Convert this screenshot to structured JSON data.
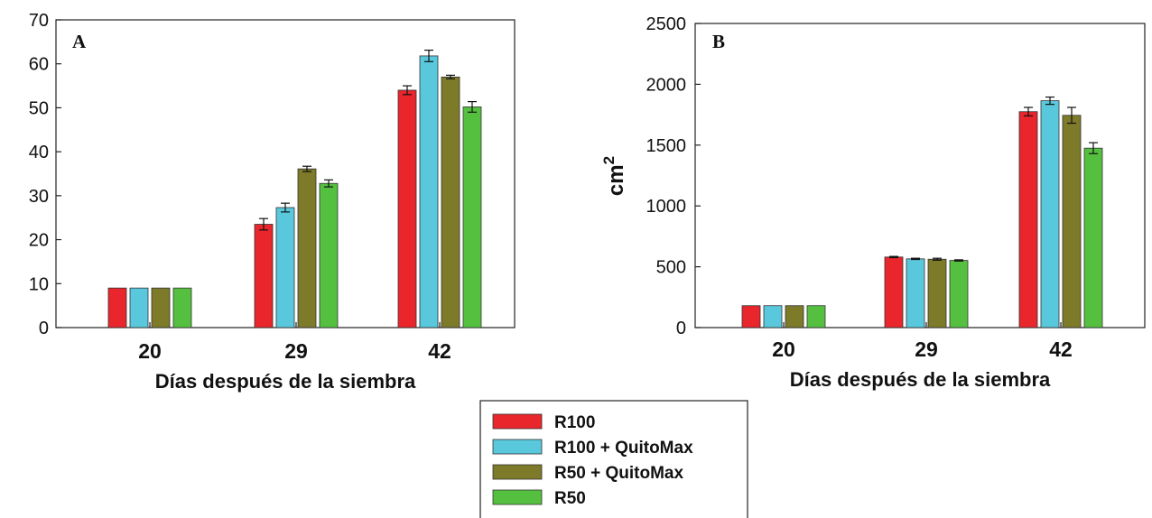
{
  "chart_data": [
    {
      "type": "bar",
      "panel_label": "A",
      "categories": [
        "20",
        "29",
        "42"
      ],
      "xlabel": "Días después de la siembra",
      "ylabel": "",
      "ylim": [
        0,
        70
      ],
      "yticks": [
        0,
        10,
        20,
        30,
        40,
        50,
        60,
        70
      ],
      "error_bars": true,
      "series": [
        {
          "name": "R100",
          "color": "#e8262b",
          "values": [
            9.0,
            23.5,
            54.0
          ],
          "errors": [
            0.0,
            1.3,
            1.0
          ]
        },
        {
          "name": "R100 + QuitoMax",
          "color": "#5ac8dc",
          "values": [
            9.0,
            27.3,
            61.8
          ],
          "errors": [
            0.0,
            1.0,
            1.3
          ]
        },
        {
          "name": "R50 + QuitoMax",
          "color": "#7d7a2a",
          "values": [
            9.0,
            36.1,
            57.0
          ],
          "errors": [
            0.0,
            0.6,
            0.4
          ]
        },
        {
          "name": "R50",
          "color": "#55c03f",
          "values": [
            9.0,
            32.8,
            50.2
          ],
          "errors": [
            0.0,
            0.8,
            1.2
          ]
        }
      ]
    },
    {
      "type": "bar",
      "panel_label": "B",
      "categories": [
        "20",
        "29",
        "42"
      ],
      "xlabel": "Días después de la siembra",
      "ylabel": "cm",
      "ylabel_sup": "2",
      "ylim": [
        0,
        2500
      ],
      "yticks": [
        0,
        500,
        1000,
        1500,
        2000,
        2500
      ],
      "error_bars": true,
      "series": [
        {
          "name": "R100",
          "color": "#e8262b",
          "values": [
            180,
            580,
            1775
          ],
          "errors": [
            0,
            5,
            35
          ]
        },
        {
          "name": "R100 + QuitoMax",
          "color": "#5ac8dc",
          "values": [
            180,
            565,
            1865
          ],
          "errors": [
            0,
            5,
            30
          ]
        },
        {
          "name": "R50 + QuitoMax",
          "color": "#7d7a2a",
          "values": [
            180,
            562,
            1745
          ],
          "errors": [
            0,
            8,
            65
          ]
        },
        {
          "name": "R50",
          "color": "#55c03f",
          "values": [
            180,
            552,
            1475
          ],
          "errors": [
            0,
            5,
            45
          ]
        }
      ]
    }
  ],
  "legend": {
    "placement": "bottom-center",
    "entries": [
      {
        "label": "R100",
        "color": "#e8262b"
      },
      {
        "label": "R100 + QuitoMax",
        "color": "#5ac8dc"
      },
      {
        "label": "R50 + QuitoMax",
        "color": "#7d7a2a"
      },
      {
        "label": "R50",
        "color": "#55c03f"
      }
    ]
  }
}
